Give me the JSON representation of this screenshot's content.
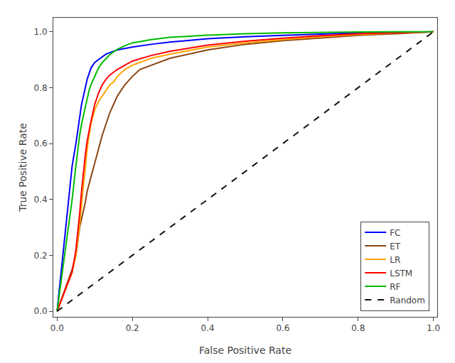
{
  "chart_data": {
    "type": "line",
    "xlabel": "False Positive Rate",
    "ylabel": "True Positive Rate",
    "xlim": [
      -0.01,
      1.01
    ],
    "ylim": [
      -0.02,
      1.05
    ],
    "xticks": [
      {
        "value": 0,
        "label": "0.0"
      },
      0.2,
      0.4,
      0.6,
      0.8,
      {
        "value": 1.0,
        "label": "1.0"
      }
    ],
    "yticks": [
      {
        "value": 0,
        "label": "0.0"
      },
      0.2,
      0.4,
      0.6,
      0.8,
      {
        "value": 1.0,
        "label": "1.0"
      }
    ],
    "grid": false,
    "legend": "lower right",
    "series": [
      {
        "name": "FC",
        "color": "#0000FF",
        "line_style": "solid",
        "x": [
          0.0,
          0.04,
          0.05,
          0.055,
          0.06,
          0.065,
          0.07,
          0.075,
          0.08,
          0.085,
          0.09,
          0.095,
          0.1,
          0.11,
          0.12,
          0.13,
          0.14,
          0.15,
          0.16,
          0.18,
          0.2,
          0.25,
          0.3,
          0.4,
          0.5,
          0.6,
          0.7,
          0.8,
          0.9,
          1.0
        ],
        "values": [
          0.0,
          0.52,
          0.6,
          0.65,
          0.7,
          0.74,
          0.77,
          0.8,
          0.83,
          0.85,
          0.87,
          0.88,
          0.89,
          0.9,
          0.91,
          0.92,
          0.925,
          0.93,
          0.935,
          0.94,
          0.945,
          0.955,
          0.963,
          0.975,
          0.982,
          0.987,
          0.992,
          0.996,
          0.998,
          1.0
        ]
      },
      {
        "name": "ET",
        "color": "#8B4513",
        "line_style": "solid",
        "x": [
          0.0,
          0.04,
          0.05,
          0.055,
          0.06,
          0.065,
          0.07,
          0.075,
          0.08,
          0.09,
          0.1,
          0.11,
          0.12,
          0.13,
          0.14,
          0.15,
          0.16,
          0.18,
          0.2,
          0.22,
          0.25,
          0.3,
          0.4,
          0.5,
          0.6,
          0.7,
          0.8,
          0.9,
          1.0
        ],
        "values": [
          0.0,
          0.15,
          0.2,
          0.25,
          0.3,
          0.33,
          0.36,
          0.39,
          0.43,
          0.48,
          0.53,
          0.58,
          0.63,
          0.67,
          0.71,
          0.74,
          0.77,
          0.81,
          0.84,
          0.865,
          0.88,
          0.905,
          0.935,
          0.955,
          0.968,
          0.978,
          0.987,
          0.993,
          1.0
        ]
      },
      {
        "name": "LR",
        "color": "#FFA500",
        "line_style": "solid",
        "x": [
          0.0,
          0.04,
          0.05,
          0.055,
          0.06,
          0.065,
          0.07,
          0.075,
          0.08,
          0.085,
          0.09,
          0.1,
          0.11,
          0.12,
          0.13,
          0.14,
          0.15,
          0.16,
          0.18,
          0.2,
          0.25,
          0.3,
          0.4,
          0.5,
          0.6,
          0.7,
          0.8,
          0.9,
          1.0
        ],
        "values": [
          0.0,
          0.14,
          0.2,
          0.25,
          0.31,
          0.38,
          0.45,
          0.52,
          0.58,
          0.63,
          0.67,
          0.72,
          0.75,
          0.77,
          0.79,
          0.81,
          0.82,
          0.84,
          0.865,
          0.88,
          0.905,
          0.92,
          0.945,
          0.96,
          0.972,
          0.982,
          0.99,
          0.996,
          1.0
        ]
      },
      {
        "name": "LSTM",
        "color": "#FF0000",
        "line_style": "solid",
        "x": [
          0.0,
          0.04,
          0.05,
          0.055,
          0.06,
          0.065,
          0.07,
          0.075,
          0.08,
          0.085,
          0.09,
          0.095,
          0.1,
          0.11,
          0.12,
          0.13,
          0.14,
          0.15,
          0.16,
          0.18,
          0.2,
          0.25,
          0.3,
          0.4,
          0.5,
          0.6,
          0.7,
          0.8,
          0.9,
          1.0
        ],
        "values": [
          0.0,
          0.14,
          0.22,
          0.28,
          0.35,
          0.43,
          0.5,
          0.56,
          0.61,
          0.65,
          0.68,
          0.71,
          0.74,
          0.78,
          0.81,
          0.83,
          0.845,
          0.855,
          0.865,
          0.88,
          0.895,
          0.915,
          0.93,
          0.952,
          0.966,
          0.977,
          0.986,
          0.993,
          0.997,
          1.0
        ]
      },
      {
        "name": "RF",
        "color": "#00BB00",
        "line_style": "solid",
        "x": [
          0.0,
          0.04,
          0.05,
          0.055,
          0.06,
          0.065,
          0.07,
          0.075,
          0.08,
          0.085,
          0.09,
          0.1,
          0.11,
          0.12,
          0.13,
          0.14,
          0.15,
          0.16,
          0.18,
          0.2,
          0.25,
          0.3,
          0.4,
          0.5,
          0.6,
          0.7,
          0.8,
          0.9,
          1.0
        ],
        "values": [
          0.0,
          0.4,
          0.52,
          0.58,
          0.63,
          0.67,
          0.7,
          0.73,
          0.76,
          0.79,
          0.81,
          0.84,
          0.87,
          0.89,
          0.905,
          0.918,
          0.928,
          0.937,
          0.95,
          0.96,
          0.972,
          0.98,
          0.988,
          0.993,
          0.996,
          0.998,
          0.999,
          0.9995,
          1.0
        ]
      },
      {
        "name": "Random",
        "color": "#111111",
        "line_style": "dashed",
        "x": [
          0,
          1
        ],
        "values": [
          0,
          1
        ]
      }
    ]
  }
}
